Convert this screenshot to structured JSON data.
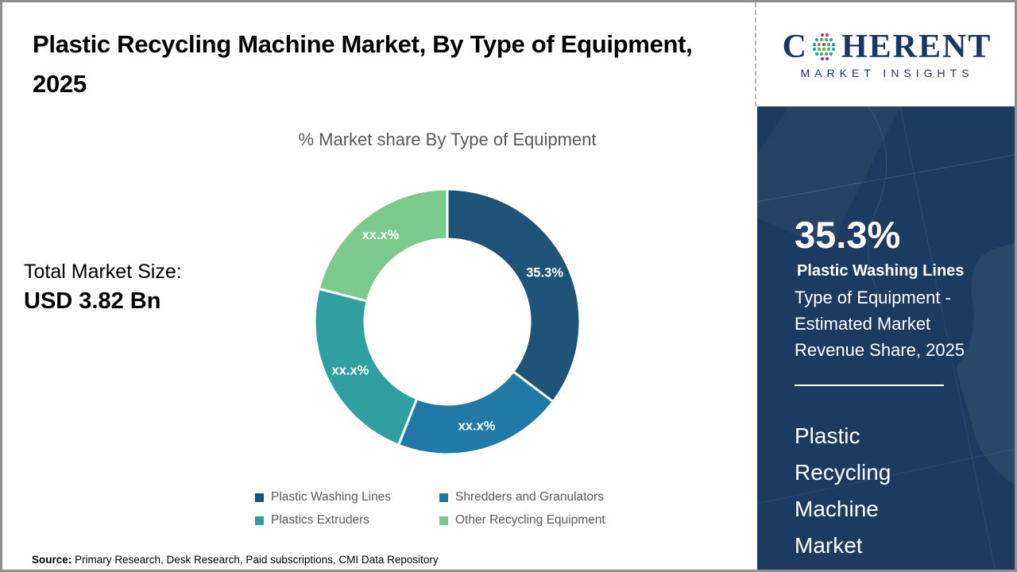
{
  "header": {
    "title": "Plastic Recycling Machine Market, By Type of Equipment, 2025"
  },
  "logo": {
    "brand_prefix": "C",
    "brand_suffix": "HERENT",
    "subtitle": "MARKET INSIGHTS"
  },
  "main": {
    "chart_title": "% Market share By Type of Equipment",
    "total_label": "Total Market Size:",
    "total_value": "USD 3.82 Bn",
    "source_label": "Source:",
    "source_text": " Primary Research, Desk Research, Paid subscriptions, CMI Data Repository"
  },
  "chart_data": {
    "type": "pie",
    "subtype": "donut",
    "title": "% Market share By Type of Equipment",
    "categories": [
      "Plastic Washing Lines",
      "Shredders and  Granulators",
      "Plastics Extruders",
      "Other Recycling Equipment"
    ],
    "values": [
      35.3,
      20.7,
      23.0,
      21.0
    ],
    "value_labels": [
      "35.3%",
      "xx.x%",
      "xx.x%",
      "xx.x%"
    ],
    "colors": [
      "#1f5378",
      "#2179a5",
      "#2f9fa0",
      "#7cc98e"
    ],
    "start_angle_deg": 0,
    "direction": "clockwise",
    "inner_radius_ratio": 0.62,
    "legend_position": "bottom",
    "slice_label_color": "#ffffff"
  },
  "sidebar": {
    "stat_value": "35.3%",
    "stat_label": "Plastic Washing Lines",
    "stat_desc": "Type of Equipment - Estimated Market Revenue Share, 2025",
    "market_name": "Plastic Recycling Machine Market",
    "bg_color": "#1d3b60"
  }
}
